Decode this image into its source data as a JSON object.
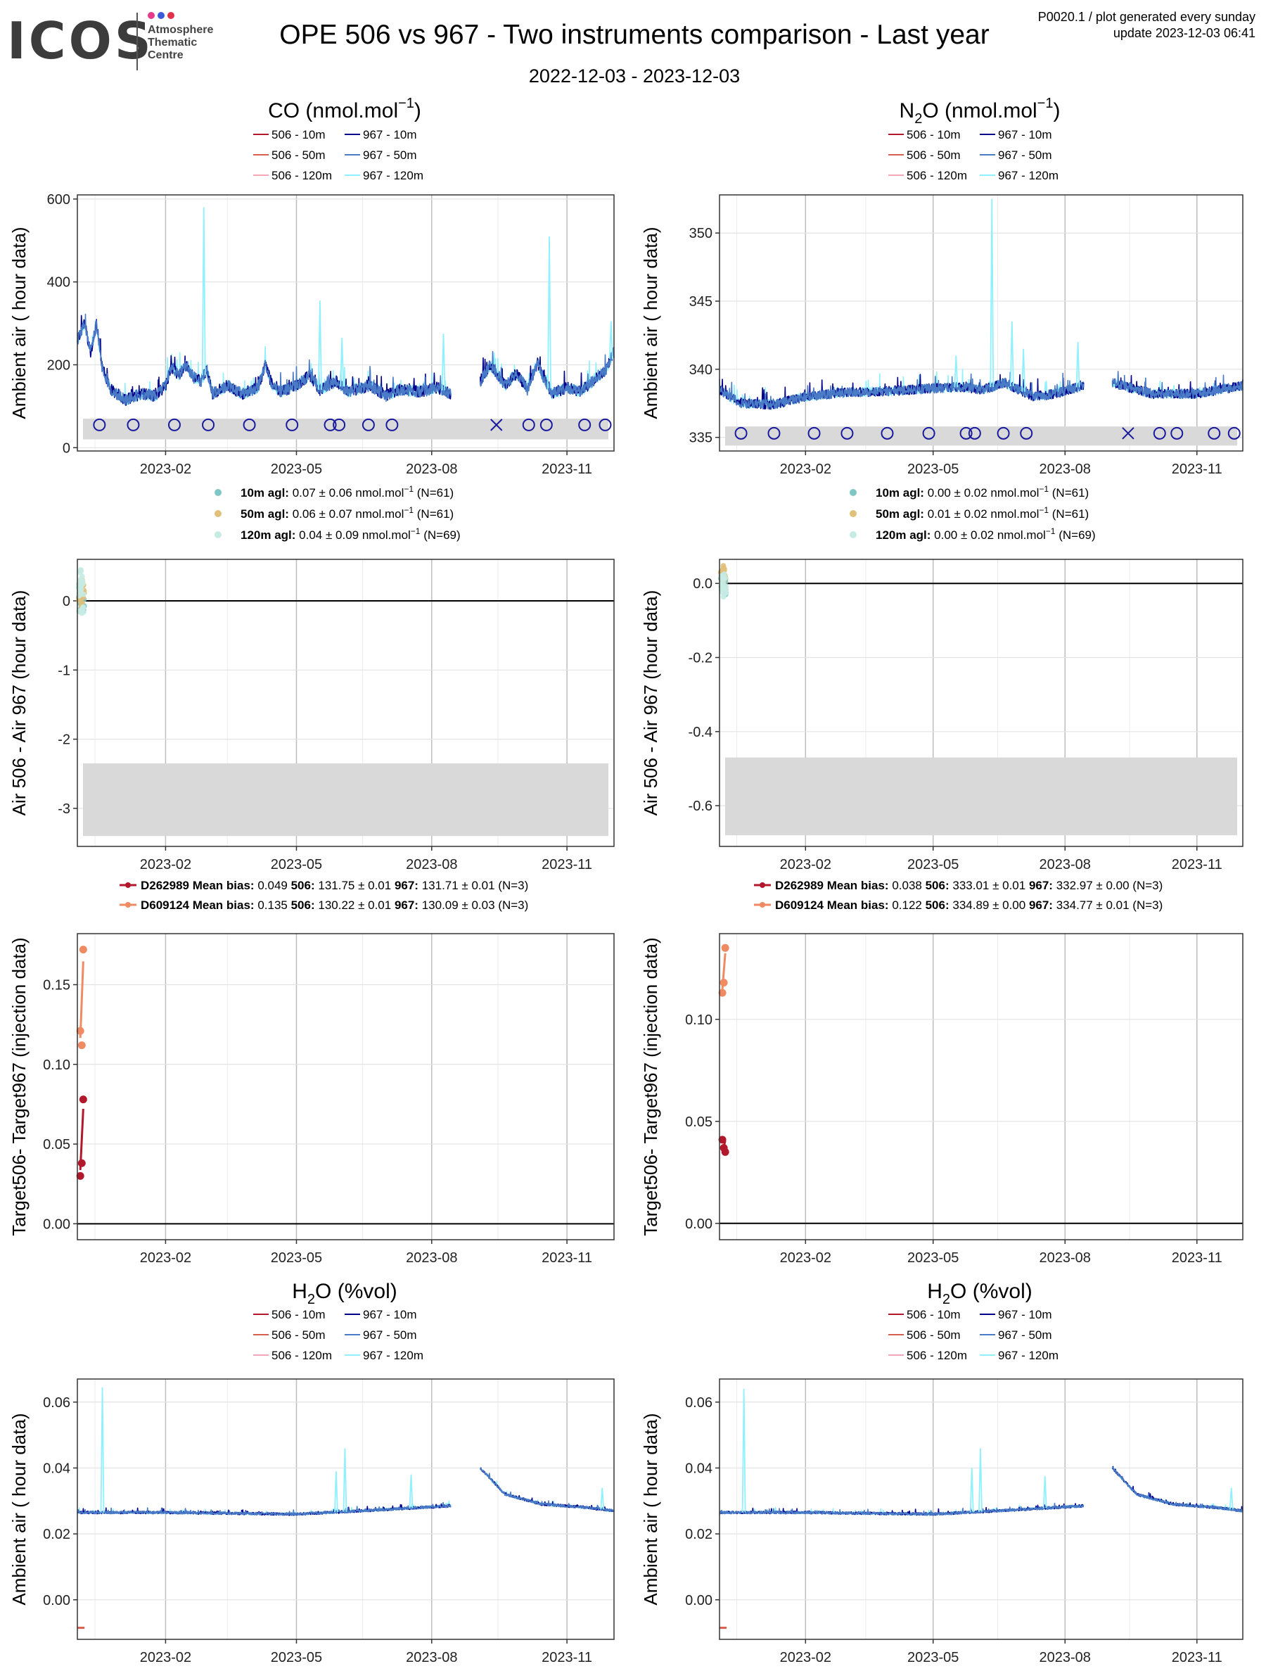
{
  "header": {
    "logo_text": "ICOS",
    "logo_sub": [
      "Atmosphere",
      "Thematic",
      "Centre"
    ],
    "title": "OPE 506 vs 967 - Two instruments comparison - Last year",
    "subtitle": "2022-12-03 - 2023-12-03",
    "info_line1": "P0020.1 / plot generated every sunday",
    "info_line2": "update  2023-12-03 06:41"
  },
  "x_ticks": [
    "2023-02",
    "2023-05",
    "2023-08",
    "2023-11"
  ],
  "colors": {
    "506-10m": "#b2182b",
    "506-50m": "#d6604d",
    "506-120m": "#f4a6b8",
    "967-10m": "#00008b",
    "967-50m": "#4a7bc6",
    "967-120m": "#8ff0ff",
    "dot-10m": "#7fc7c6",
    "dot-50m": "#e0c07a",
    "dot-120m": "#c5ebe3",
    "D262989": "#b2182b",
    "D609124": "#ef8a62",
    "marker": "#1a1a9e",
    "band": "#d9d9d9"
  },
  "legend_series": [
    "506 - 10m",
    "967 - 10m",
    "506 - 50m",
    "967 - 50m",
    "506 - 120m",
    "967 - 120m"
  ],
  "columns": [
    {
      "gas": "CO",
      "ambient_title": "CO (nmol.mol",
      "ambient_title_sup": "−1",
      "ambient_title_tail": ")",
      "ambient_ylabel": "Ambient air ( hour data)",
      "ambient_ylim": [
        -8,
        610
      ],
      "ambient_yticks": [
        "0",
        "200",
        "400",
        "600"
      ],
      "ambient_ytick_values": [
        0,
        200,
        400,
        600
      ],
      "stats": [
        {
          "label": "10m agl:",
          "value": "0.07 ± 0.06 nmol.mol",
          "sup": "−1",
          "n": "(N=61)"
        },
        {
          "label": "50m agl:",
          "value": "0.06 ± 0.07 nmol.mol",
          "sup": "−1",
          "n": "(N=61)"
        },
        {
          "label": "120m agl:",
          "value": "0.04 ± 0.09 nmol.mol",
          "sup": "−1",
          "n": "(N=69)"
        }
      ],
      "diff_ylabel": "Air 506 - Air 967 (hour data)",
      "diff_ylim": [
        -3.55,
        0.6
      ],
      "diff_yticks": [
        "0",
        "-1",
        "-2",
        "-3"
      ],
      "diff_ytick_values": [
        0,
        -1,
        -2,
        -3
      ],
      "target_legend": [
        {
          "id": "D262989",
          "mean_bias": "0.049",
          "v506": "131.75 ± 0.01",
          "v967": "131.71 ± 0.01",
          "n": "(N=3)"
        },
        {
          "id": "D609124",
          "mean_bias": "0.135",
          "v506": "130.22 ± 0.01",
          "v967": "130.09 ± 0.03",
          "n": "(N=3)"
        }
      ],
      "target_ylabel": "Target506- Target967 (injection data)",
      "target_ylim": [
        -0.01,
        0.182
      ],
      "target_yticks": [
        "0.00",
        "0.05",
        "0.10",
        "0.15"
      ],
      "target_ytick_values": [
        0,
        0.05,
        0.1,
        0.15
      ],
      "h2o_title": "H",
      "h2o_title_sub": "2",
      "h2o_title_tail": "O (%vol)",
      "h2o_ylabel": "Ambient air ( hour data)",
      "h2o_ylim": [
        -0.012,
        0.067
      ],
      "h2o_yticks": [
        "0.00",
        "0.02",
        "0.04",
        "0.06"
      ],
      "h2o_ytick_values": [
        0,
        0.02,
        0.04,
        0.06
      ],
      "markers": [
        "o",
        "o",
        "o",
        "o",
        "o",
        "o",
        "o",
        "o",
        "o",
        "o",
        "x",
        "o",
        "o",
        "o",
        "o"
      ],
      "marker_dates": [
        "2022-12-18",
        "2023-01-10",
        "2023-02-07",
        "2023-03-02",
        "2023-03-30",
        "2023-04-28",
        "2023-05-24",
        "2023-05-30",
        "2023-06-19",
        "2023-07-05",
        "2023-09-14",
        "2023-10-06",
        "2023-10-18",
        "2023-11-13",
        "2023-11-27"
      ],
      "marker_value": 55
    },
    {
      "gas": "N2O",
      "ambient_title": "N",
      "ambient_title_sub": "2",
      "ambient_title_mid": "O (nmol.mol",
      "ambient_title_sup": "−1",
      "ambient_title_tail": ")",
      "ambient_ylabel": "Ambient air ( hour data)",
      "ambient_ylim": [
        334,
        352.8
      ],
      "ambient_yticks": [
        "335",
        "340",
        "345",
        "350"
      ],
      "ambient_ytick_values": [
        335,
        340,
        345,
        350
      ],
      "stats": [
        {
          "label": "10m agl:",
          "value": "0.00 ± 0.02 nmol.mol",
          "sup": "−1",
          "n": "(N=61)"
        },
        {
          "label": "50m agl:",
          "value": "0.01 ± 0.02 nmol.mol",
          "sup": "−1",
          "n": "(N=61)"
        },
        {
          "label": "120m agl:",
          "value": "0.00 ± 0.02 nmol.mol",
          "sup": "−1",
          "n": "(N=69)"
        }
      ],
      "diff_ylabel": "Air 506 - Air 967 (hour data)",
      "diff_ylim": [
        -0.71,
        0.065
      ],
      "diff_yticks": [
        "0.0",
        "-0.2",
        "-0.4",
        "-0.6"
      ],
      "diff_ytick_values": [
        0,
        -0.2,
        -0.4,
        -0.6
      ],
      "target_legend": [
        {
          "id": "D262989",
          "mean_bias": "0.038",
          "v506": "333.01 ± 0.01",
          "v967": "332.97 ± 0.00",
          "n": "(N=3)"
        },
        {
          "id": "D609124",
          "mean_bias": "0.122",
          "v506": "334.89 ± 0.00",
          "v967": "334.77 ± 0.01",
          "n": "(N=3)"
        }
      ],
      "target_ylabel": "Target506- Target967 (injection data)",
      "target_ylim": [
        -0.008,
        0.142
      ],
      "target_yticks": [
        "0.00",
        "0.05",
        "0.10"
      ],
      "target_ytick_values": [
        0,
        0.05,
        0.1
      ],
      "h2o_title": "H",
      "h2o_title_sub": "2",
      "h2o_title_tail": "O (%vol)",
      "h2o_ylabel": "Ambient air ( hour data)",
      "h2o_ylim": [
        -0.012,
        0.067
      ],
      "h2o_yticks": [
        "0.00",
        "0.02",
        "0.04",
        "0.06"
      ],
      "h2o_ytick_values": [
        0,
        0.02,
        0.04,
        0.06
      ],
      "markers": [
        "o",
        "o",
        "o",
        "o",
        "o",
        "o",
        "o",
        "o",
        "o",
        "o",
        "x",
        "o",
        "o",
        "o",
        "o"
      ],
      "marker_dates": [
        "2022-12-18",
        "2023-01-10",
        "2023-02-07",
        "2023-03-02",
        "2023-03-30",
        "2023-04-28",
        "2023-05-24",
        "2023-05-30",
        "2023-06-19",
        "2023-07-05",
        "2023-09-14",
        "2023-10-06",
        "2023-10-18",
        "2023-11-13",
        "2023-11-27"
      ],
      "marker_value": 335.3
    }
  ],
  "chart_data": [
    {
      "type": "line",
      "title": "CO (nmol.mol−1)",
      "ylabel": "Ambient air ( hour data)",
      "xlim": [
        "2022-12-03",
        "2023-12-03"
      ],
      "ylim": [
        -8,
        610
      ],
      "band": [
        20,
        70
      ],
      "gaps": [
        [
          "2023-08-14",
          "2023-09-03"
        ]
      ],
      "baseline_points": [
        [
          "2022-12-03",
          260
        ],
        [
          "2022-12-08",
          300
        ],
        [
          "2022-12-12",
          230
        ],
        [
          "2022-12-16",
          300
        ],
        [
          "2022-12-20",
          190
        ],
        [
          "2022-12-26",
          140
        ],
        [
          "2023-01-05",
          115
        ],
        [
          "2023-01-15",
          130
        ],
        [
          "2023-01-25",
          125
        ],
        [
          "2023-02-01",
          150
        ],
        [
          "2023-02-05",
          195
        ],
        [
          "2023-02-10",
          175
        ],
        [
          "2023-02-15",
          200
        ],
        [
          "2023-02-20",
          170
        ],
        [
          "2023-02-25",
          160
        ],
        [
          "2023-03-01",
          190
        ],
        [
          "2023-03-05",
          130
        ],
        [
          "2023-03-15",
          150
        ],
        [
          "2023-03-25",
          130
        ],
        [
          "2023-04-05",
          145
        ],
        [
          "2023-04-10",
          200
        ],
        [
          "2023-04-14",
          155
        ],
        [
          "2023-04-20",
          135
        ],
        [
          "2023-05-01",
          150
        ],
        [
          "2023-05-10",
          175
        ],
        [
          "2023-05-17",
          140
        ],
        [
          "2023-05-28",
          160
        ],
        [
          "2023-06-05",
          135
        ],
        [
          "2023-06-20",
          150
        ],
        [
          "2023-07-01",
          125
        ],
        [
          "2023-07-10",
          140
        ],
        [
          "2023-07-25",
          135
        ],
        [
          "2023-08-05",
          145
        ],
        [
          "2023-08-14",
          130
        ],
        [
          "2023-09-03",
          160
        ],
        [
          "2023-09-10",
          200
        ],
        [
          "2023-09-15",
          175
        ],
        [
          "2023-09-20",
          150
        ],
        [
          "2023-09-28",
          180
        ],
        [
          "2023-10-05",
          140
        ],
        [
          "2023-10-12",
          205
        ],
        [
          "2023-10-16",
          170
        ],
        [
          "2023-10-22",
          130
        ],
        [
          "2023-11-01",
          145
        ],
        [
          "2023-11-10",
          135
        ],
        [
          "2023-11-20",
          165
        ],
        [
          "2023-11-28",
          190
        ],
        [
          "2023-12-03",
          230
        ]
      ],
      "spikes": [
        [
          "2023-02-27",
          580
        ],
        [
          "2023-05-17",
          355
        ],
        [
          "2023-06-01",
          265
        ],
        [
          "2023-08-09",
          275
        ],
        [
          "2023-10-20",
          510
        ],
        [
          "2023-12-01",
          305
        ]
      ]
    },
    {
      "type": "line",
      "title": "N2O (nmol.mol−1)",
      "ylabel": "Ambient air ( hour data)",
      "xlim": [
        "2022-12-03",
        "2023-12-03"
      ],
      "ylim": [
        334,
        352.8
      ],
      "band": [
        334.4,
        335.8
      ],
      "gaps": [
        [
          "2023-08-14",
          "2023-09-03"
        ]
      ],
      "baseline_points": [
        [
          "2022-12-03",
          338.5
        ],
        [
          "2022-12-10",
          338.0
        ],
        [
          "2022-12-18",
          337.5
        ],
        [
          "2023-01-10",
          337.4
        ],
        [
          "2023-02-01",
          338.0
        ],
        [
          "2023-03-01",
          338.3
        ],
        [
          "2023-04-01",
          338.4
        ],
        [
          "2023-05-01",
          338.6
        ],
        [
          "2023-05-20",
          338.7
        ],
        [
          "2023-06-05",
          338.5
        ],
        [
          "2023-06-20",
          339.0
        ],
        [
          "2023-07-10",
          338.0
        ],
        [
          "2023-07-25",
          338.2
        ],
        [
          "2023-08-14",
          338.8
        ],
        [
          "2023-09-03",
          339.0
        ],
        [
          "2023-10-01",
          338.2
        ],
        [
          "2023-11-01",
          338.2
        ],
        [
          "2023-12-03",
          338.8
        ]
      ],
      "spikes": [
        [
          "2023-06-11",
          352.5
        ],
        [
          "2023-06-25",
          343.5
        ],
        [
          "2023-08-10",
          342.0
        ],
        [
          "2023-07-03",
          341.5
        ],
        [
          "2023-05-17",
          341.0
        ]
      ]
    },
    {
      "type": "scatter",
      "title": "CO Air 506 - Air 967",
      "xlim": [
        "2022-12-03",
        "2023-12-03"
      ],
      "ylim": [
        -3.55,
        0.6
      ],
      "band": [
        -3.4,
        -2.35
      ],
      "series": [
        {
          "name": "10m agl",
          "range": [
            -0.15,
            0.15
          ]
        },
        {
          "name": "50m agl",
          "range": [
            -0.1,
            0.3
          ]
        },
        {
          "name": "120m agl",
          "range": [
            -0.2,
            0.45
          ]
        }
      ]
    },
    {
      "type": "scatter",
      "title": "N2O Air 506 - Air 967",
      "xlim": [
        "2022-12-03",
        "2023-12-03"
      ],
      "ylim": [
        -0.71,
        0.065
      ],
      "band": [
        -0.68,
        -0.47
      ],
      "series": [
        {
          "name": "10m agl",
          "range": [
            -0.03,
            0.02
          ]
        },
        {
          "name": "50m agl",
          "range": [
            -0.02,
            0.05
          ]
        },
        {
          "name": "120m agl",
          "range": [
            -0.04,
            0.03
          ]
        }
      ]
    },
    {
      "type": "line",
      "title": "CO Target506- Target967",
      "xlim": [
        "2022-12-03",
        "2023-12-03"
      ],
      "ylim": [
        -0.01,
        0.182
      ],
      "series": [
        {
          "name": "D262989",
          "x": [
            "2022-12-05",
            "2022-12-06",
            "2022-12-07"
          ],
          "values": [
            0.03,
            0.038,
            0.078
          ]
        },
        {
          "name": "D609124",
          "x": [
            "2022-12-05",
            "2022-12-06",
            "2022-12-07"
          ],
          "values": [
            0.121,
            0.112,
            0.172
          ]
        }
      ]
    },
    {
      "type": "line",
      "title": "N2O Target506- Target967",
      "xlim": [
        "2022-12-03",
        "2023-12-03"
      ],
      "ylim": [
        -0.008,
        0.142
      ],
      "series": [
        {
          "name": "D262989",
          "x": [
            "2022-12-05",
            "2022-12-06",
            "2022-12-07"
          ],
          "values": [
            0.041,
            0.037,
            0.035
          ]
        },
        {
          "name": "D609124",
          "x": [
            "2022-12-05",
            "2022-12-06",
            "2022-12-07"
          ],
          "values": [
            0.113,
            0.118,
            0.135
          ]
        }
      ]
    },
    {
      "type": "line",
      "title": "H2O (%vol)",
      "xlim": [
        "2022-12-03",
        "2023-12-03"
      ],
      "ylim": [
        -0.012,
        0.067
      ],
      "gaps": [
        [
          "2023-08-14",
          "2023-09-03"
        ]
      ],
      "baseline_points": [
        [
          "2022-12-03",
          0.0265
        ],
        [
          "2023-02-01",
          0.0265
        ],
        [
          "2023-05-01",
          0.026
        ],
        [
          "2023-06-15",
          0.027
        ],
        [
          "2023-08-14",
          0.0285
        ],
        [
          "2023-09-03",
          0.04
        ],
        [
          "2023-09-20",
          0.032
        ],
        [
          "2023-10-15",
          0.029
        ],
        [
          "2023-11-15",
          0.028
        ],
        [
          "2023-12-03",
          0.027
        ]
      ],
      "spikes": [
        [
          "2022-12-20",
          0.0645
        ],
        [
          "2023-06-03",
          0.046
        ],
        [
          "2023-05-28",
          0.039
        ],
        [
          "2023-07-18",
          0.038
        ],
        [
          "2023-11-25",
          0.034
        ]
      ],
      "offset_points": [
        [
          "2022-12-05",
          -0.0085
        ]
      ]
    },
    {
      "type": "line",
      "title": "H2O (%vol)",
      "xlim": [
        "2022-12-03",
        "2023-12-03"
      ],
      "ylim": [
        -0.012,
        0.067
      ],
      "gaps": [
        [
          "2023-08-14",
          "2023-09-03"
        ]
      ],
      "baseline_points": [
        [
          "2022-12-03",
          0.0265
        ],
        [
          "2023-02-01",
          0.0265
        ],
        [
          "2023-05-01",
          0.026
        ],
        [
          "2023-06-15",
          0.027
        ],
        [
          "2023-08-14",
          0.0285
        ],
        [
          "2023-09-03",
          0.04
        ],
        [
          "2023-09-20",
          0.032
        ],
        [
          "2023-10-15",
          0.029
        ],
        [
          "2023-11-15",
          0.028
        ],
        [
          "2023-12-03",
          0.027
        ]
      ],
      "spikes": [
        [
          "2022-12-20",
          0.064
        ],
        [
          "2023-06-03",
          0.046
        ],
        [
          "2023-05-28",
          0.04
        ],
        [
          "2023-07-18",
          0.0375
        ],
        [
          "2023-11-25",
          0.034
        ]
      ],
      "offset_points": [
        [
          "2022-12-05",
          -0.0085
        ]
      ]
    }
  ]
}
